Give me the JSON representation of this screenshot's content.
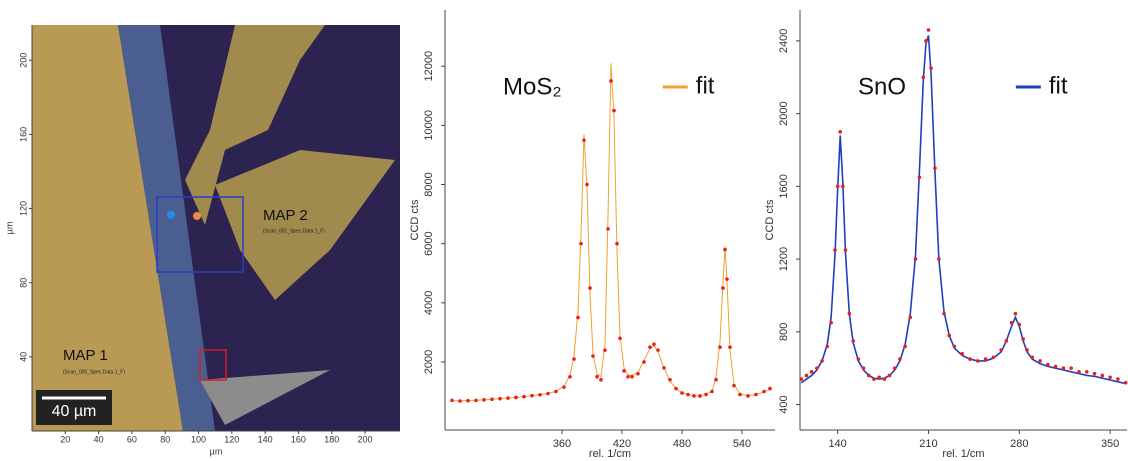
{
  "chart_data": [
    {
      "type": "image",
      "xlabel": "µm",
      "ylabel": "µm",
      "xlim": [
        0,
        221
      ],
      "ylim": [
        0,
        219
      ],
      "xticks": [
        20,
        40,
        60,
        80,
        100,
        120,
        140,
        160,
        180,
        200
      ],
      "yticks": [
        40,
        80,
        120,
        160,
        200
      ],
      "annotations": [
        "MAP 1",
        "(Scan_000_Spec.Data 1_F)",
        "MAP 2",
        "(Scan_001_Spec.Data 1_F)",
        "40 µm"
      ]
    },
    {
      "type": "spectrum",
      "title": "MoS₂",
      "xlabel": "rel. 1/cm",
      "ylabel": "CCD cts",
      "xlim": [
        243,
        573
      ],
      "ylim": [
        -300,
        13900
      ],
      "xticks": [
        360,
        420,
        480,
        540
      ],
      "yticks": [
        2000,
        4000,
        6000,
        8000,
        10000,
        12000
      ],
      "x": [
        250,
        258,
        266,
        274,
        282,
        290,
        298,
        306,
        314,
        322,
        330,
        338,
        346,
        354,
        362,
        368,
        372,
        376,
        379,
        382,
        385,
        388,
        391,
        395,
        399,
        403,
        406,
        409,
        412,
        415,
        418,
        422,
        426,
        430,
        436,
        442,
        448,
        452,
        456,
        462,
        468,
        474,
        480,
        486,
        492,
        498,
        504,
        510,
        514,
        518,
        521,
        523,
        525,
        528,
        532,
        538,
        546,
        554,
        562,
        568
      ],
      "measured": {
        "color": "#e8201c",
        "values": [
          700,
          680,
          690,
          700,
          720,
          740,
          760,
          780,
          800,
          830,
          860,
          890,
          930,
          1000,
          1150,
          1500,
          2100,
          3500,
          6000,
          9500,
          8000,
          4500,
          2200,
          1500,
          1400,
          2400,
          6500,
          11500,
          10500,
          6000,
          2800,
          1700,
          1500,
          1500,
          1600,
          2000,
          2500,
          2600,
          2400,
          1800,
          1400,
          1100,
          950,
          900,
          850,
          850,
          900,
          1000,
          1400,
          2500,
          4500,
          5800,
          4800,
          2500,
          1200,
          900,
          850,
          900,
          1000,
          1100
        ]
      },
      "series": [
        {
          "name": "fit",
          "color": "#f0a030",
          "values": [
            690,
            690,
            695,
            705,
            720,
            740,
            760,
            780,
            805,
            830,
            860,
            890,
            935,
            1010,
            1180,
            1550,
            2200,
            3700,
            6300,
            9700,
            7900,
            4300,
            2300,
            1600,
            1500,
            2600,
            6900,
            12100,
            10300,
            5700,
            2900,
            1800,
            1550,
            1550,
            1650,
            2050,
            2450,
            2550,
            2350,
            1800,
            1350,
            1100,
            960,
            900,
            860,
            860,
            900,
            1020,
            1450,
            2700,
            4700,
            5900,
            4700,
            2400,
            1250,
            920,
            860,
            900,
            980,
            1080
          ]
        }
      ]
    },
    {
      "type": "spectrum",
      "title": "SnO",
      "xlabel": "rel. 1/cm",
      "ylabel": "CCD cts",
      "xlim": [
        111,
        363
      ],
      "ylim": [
        260,
        2570
      ],
      "xticks": [
        140,
        210,
        280,
        350
      ],
      "yticks": [
        400,
        800,
        1200,
        1600,
        2000,
        2400
      ],
      "x": [
        112,
        116,
        120,
        124,
        128,
        132,
        135,
        138,
        140,
        142,
        144,
        146,
        149,
        152,
        156,
        160,
        164,
        168,
        172,
        176,
        180,
        184,
        188,
        192,
        196,
        200,
        203,
        206,
        208,
        210,
        212,
        215,
        218,
        222,
        226,
        230,
        236,
        242,
        248,
        254,
        260,
        266,
        270,
        274,
        277,
        280,
        283,
        286,
        290,
        296,
        302,
        308,
        314,
        320,
        326,
        332,
        338,
        344,
        350,
        356,
        362
      ],
      "measured": {
        "color": "#e8201c",
        "values": [
          540,
          560,
          580,
          600,
          640,
          720,
          850,
          1250,
          1600,
          1900,
          1600,
          1250,
          900,
          750,
          650,
          600,
          560,
          540,
          550,
          540,
          560,
          600,
          650,
          720,
          880,
          1200,
          1650,
          2200,
          2400,
          2460,
          2250,
          1700,
          1200,
          900,
          780,
          720,
          680,
          650,
          640,
          650,
          660,
          700,
          750,
          850,
          900,
          840,
          760,
          700,
          660,
          640,
          620,
          610,
          600,
          600,
          580,
          580,
          570,
          560,
          550,
          540,
          520
        ]
      },
      "series": [
        {
          "name": "fit",
          "color": "#1f3fbf",
          "values": [
            520,
            540,
            560,
            590,
            640,
            730,
            880,
            1230,
            1580,
            1880,
            1620,
            1240,
            900,
            740,
            640,
            590,
            560,
            545,
            540,
            545,
            560,
            590,
            640,
            730,
            900,
            1220,
            1680,
            2180,
            2380,
            2430,
            2220,
            1680,
            1200,
            910,
            780,
            710,
            670,
            650,
            640,
            640,
            655,
            690,
            750,
            830,
            880,
            830,
            750,
            690,
            650,
            625,
            610,
            600,
            590,
            580,
            570,
            560,
            555,
            545,
            535,
            525,
            515
          ]
        }
      ]
    }
  ]
}
